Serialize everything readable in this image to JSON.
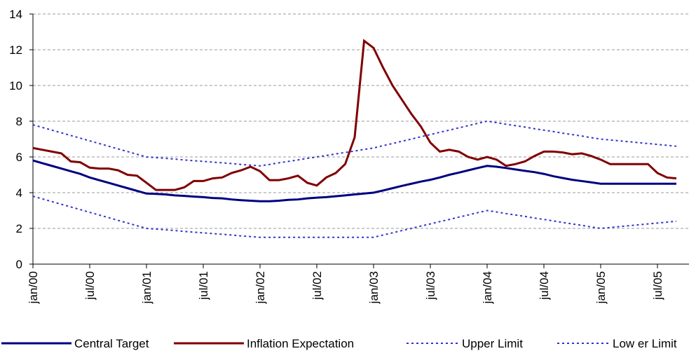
{
  "chart_data": {
    "type": "line",
    "categories": [
      "jan/00",
      null,
      null,
      null,
      null,
      null,
      "jul/00",
      null,
      null,
      null,
      null,
      null,
      "jan/01",
      null,
      null,
      null,
      null,
      null,
      "jul/01",
      null,
      null,
      null,
      null,
      null,
      "jan/02",
      null,
      null,
      null,
      null,
      null,
      "jul/02",
      null,
      null,
      null,
      null,
      null,
      "jan/03",
      null,
      null,
      null,
      null,
      null,
      "jul/03",
      null,
      null,
      null,
      null,
      null,
      "jan/04",
      null,
      null,
      null,
      null,
      null,
      "jul/04",
      null,
      null,
      null,
      null,
      null,
      "jan/05",
      null,
      null,
      null,
      null,
      null,
      "jul/05",
      null,
      null
    ],
    "series": [
      {
        "name": "Central Target",
        "color": "#000080",
        "dashed": false,
        "values": [
          5.8,
          5.65,
          5.5,
          5.35,
          5.2,
          5.05,
          4.85,
          4.7,
          4.55,
          4.4,
          4.25,
          4.1,
          3.95,
          3.93,
          3.9,
          3.85,
          3.82,
          3.78,
          3.75,
          3.7,
          3.68,
          3.62,
          3.58,
          3.55,
          3.52,
          3.52,
          3.55,
          3.6,
          3.62,
          3.68,
          3.72,
          3.75,
          3.8,
          3.85,
          3.9,
          3.95,
          4.0,
          4.12,
          4.25,
          4.38,
          4.5,
          4.62,
          4.72,
          4.85,
          5.0,
          5.12,
          5.25,
          5.38,
          5.5,
          5.45,
          5.38,
          5.3,
          5.22,
          5.15,
          5.05,
          4.92,
          4.82,
          4.72,
          4.65,
          4.58,
          4.5,
          4.5,
          4.5,
          4.5,
          4.5,
          4.5,
          4.5,
          4.5,
          4.5
        ]
      },
      {
        "name": "Inflation Expectation",
        "color": "#800000",
        "dashed": false,
        "values": [
          6.5,
          6.4,
          6.3,
          6.2,
          5.75,
          5.7,
          5.4,
          5.35,
          5.35,
          5.25,
          5.0,
          4.95,
          4.55,
          4.15,
          4.15,
          4.15,
          4.3,
          4.65,
          4.65,
          4.8,
          4.85,
          5.1,
          5.25,
          5.45,
          5.2,
          4.7,
          4.7,
          4.8,
          4.95,
          4.55,
          4.4,
          4.85,
          5.1,
          5.6,
          7.1,
          12.5,
          12.1,
          11.0,
          10.0,
          9.2,
          8.4,
          7.7,
          6.8,
          6.3,
          6.4,
          6.3,
          6.0,
          5.85,
          6.0,
          5.85,
          5.5,
          5.6,
          5.75,
          6.05,
          6.3,
          6.3,
          6.25,
          6.15,
          6.2,
          6.05,
          5.85,
          5.6,
          5.6,
          5.6,
          5.6,
          5.6,
          5.1,
          4.85,
          4.8
        ]
      },
      {
        "name": "Upper Limit",
        "color": "#3333cc",
        "dashed": true,
        "values": [
          7.8,
          7.65,
          7.5,
          7.35,
          7.2,
          7.05,
          6.9,
          6.75,
          6.6,
          6.45,
          6.3,
          6.15,
          6.0,
          5.96,
          5.92,
          5.88,
          5.83,
          5.79,
          5.75,
          5.71,
          5.67,
          5.63,
          5.58,
          5.54,
          5.5,
          5.58,
          5.67,
          5.75,
          5.83,
          5.92,
          6.0,
          6.08,
          6.17,
          6.25,
          6.33,
          6.42,
          6.5,
          6.63,
          6.75,
          6.88,
          7.0,
          7.13,
          7.25,
          7.38,
          7.5,
          7.63,
          7.75,
          7.88,
          8.0,
          7.92,
          7.83,
          7.75,
          7.67,
          7.58,
          7.5,
          7.42,
          7.33,
          7.25,
          7.17,
          7.08,
          7.0,
          6.95,
          6.9,
          6.85,
          6.8,
          6.75,
          6.7,
          6.65,
          6.6
        ]
      },
      {
        "name": "Low er Limit",
        "color": "#3333cc",
        "dashed": true,
        "values": [
          3.8,
          3.65,
          3.5,
          3.35,
          3.2,
          3.05,
          2.9,
          2.75,
          2.6,
          2.45,
          2.3,
          2.15,
          2.0,
          1.96,
          1.92,
          1.88,
          1.83,
          1.79,
          1.75,
          1.71,
          1.67,
          1.63,
          1.58,
          1.54,
          1.5,
          1.5,
          1.5,
          1.5,
          1.5,
          1.5,
          1.5,
          1.5,
          1.5,
          1.5,
          1.5,
          1.5,
          1.5,
          1.63,
          1.75,
          1.88,
          2.0,
          2.13,
          2.25,
          2.38,
          2.5,
          2.63,
          2.75,
          2.88,
          3.0,
          2.92,
          2.83,
          2.75,
          2.67,
          2.58,
          2.5,
          2.42,
          2.33,
          2.25,
          2.17,
          2.08,
          2.0,
          2.05,
          2.1,
          2.15,
          2.2,
          2.25,
          2.3,
          2.35,
          2.4
        ]
      }
    ],
    "ylim": [
      0,
      14
    ],
    "yticks": [
      0,
      2,
      4,
      6,
      8,
      10,
      12,
      14
    ],
    "grid": true,
    "legend": "bottom"
  }
}
